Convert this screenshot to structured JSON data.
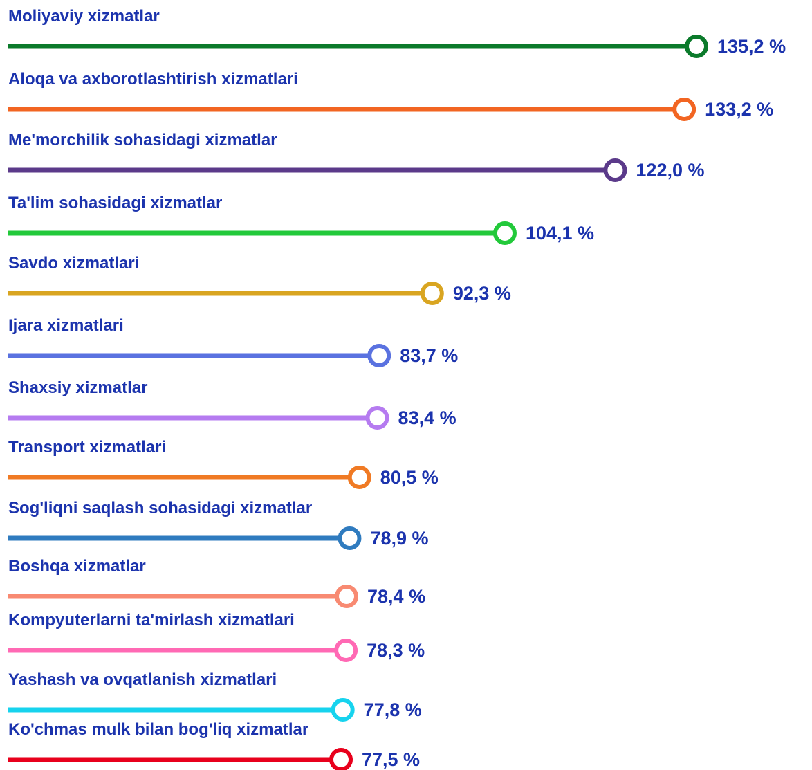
{
  "chart_data": {
    "type": "lollipop",
    "categories": [
      "Moliyaviy xizmatlar",
      "Aloqa va axborotlashtirish xizmatlari",
      "Me'morchilik sohasidagi xizmatlar",
      "Ta'lim sohasidagi xizmatlar",
      "Savdo xizmatlari",
      "Ijara xizmatlari",
      "Shaxsiy xizmatlar",
      "Transport xizmatlari",
      "Sog'liqni saqlash sohasidagi xizmatlar",
      "Boshqa xizmatlar",
      "Kompyuterlarni ta'mirlash xizmatlari",
      "Yashash va ovqatlanish xizmatlari",
      "Ko'chmas mulk bilan bog'liq xizmatlar"
    ],
    "values": [
      135.2,
      133.2,
      122.0,
      104.1,
      92.3,
      83.7,
      83.4,
      80.5,
      78.9,
      78.4,
      78.3,
      77.8,
      77.5
    ],
    "value_labels": [
      "135,2 %",
      "133,2 %",
      "122,0 %",
      "104,1 %",
      "92,3 %",
      "83,7 %",
      "83,4 %",
      "80,5 %",
      "78,9 %",
      "78,4 %",
      "78,3 %",
      "77,8 %",
      "77,5 %"
    ],
    "colors": [
      "#0b7a2b",
      "#f26522",
      "#5b3a8a",
      "#22c93a",
      "#d9a521",
      "#5a72e0",
      "#b57bf0",
      "#f07a24",
      "#2f7bbf",
      "#f88a72",
      "#ff69b4",
      "#17d3ee",
      "#e8001c"
    ]
  }
}
